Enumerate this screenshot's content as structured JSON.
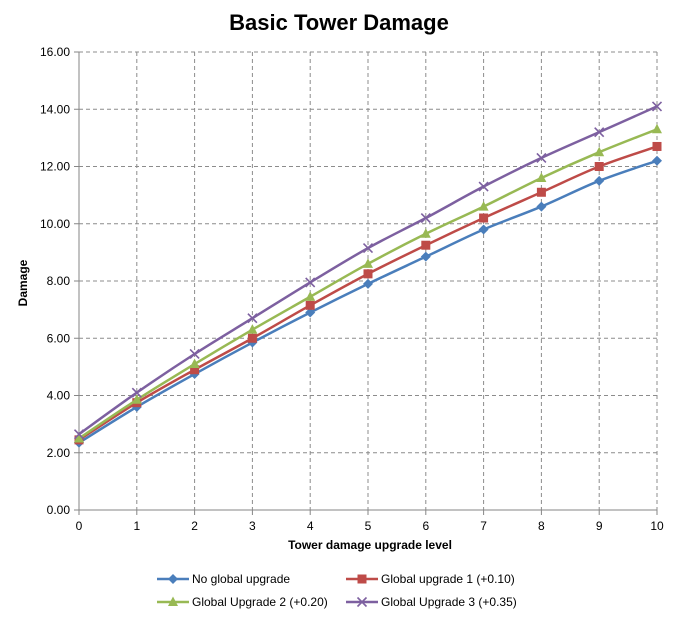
{
  "chart_data": {
    "type": "line",
    "title": "Basic Tower Damage",
    "xlabel": "Tower damage upgrade level",
    "ylabel": "Damage",
    "x": [
      0,
      1,
      2,
      3,
      4,
      5,
      6,
      7,
      8,
      9,
      10
    ],
    "xlim": [
      0,
      10
    ],
    "ylim": [
      0,
      16
    ],
    "y_ticks": [
      "0.00",
      "2.00",
      "4.00",
      "6.00",
      "8.00",
      "10.00",
      "12.00",
      "14.00",
      "16.00"
    ],
    "x_ticks": [
      "0",
      "1",
      "2",
      "3",
      "4",
      "5",
      "6",
      "7",
      "8",
      "9",
      "10"
    ],
    "grid": true,
    "legend_position": "bottom",
    "series": [
      {
        "name": "No global upgrade",
        "color": "#4a7ebb",
        "marker": "diamond",
        "values": [
          2.35,
          3.6,
          4.75,
          5.85,
          6.9,
          7.9,
          8.85,
          9.8,
          10.6,
          11.5,
          12.2
        ]
      },
      {
        "name": "Global upgrade 1 (+0.10)",
        "color": "#be4b48",
        "marker": "square",
        "values": [
          2.45,
          3.75,
          4.9,
          6.0,
          7.15,
          8.25,
          9.25,
          10.2,
          11.1,
          12.0,
          12.7
        ]
      },
      {
        "name": "Global Upgrade 2 (+0.20)",
        "color": "#98b954",
        "marker": "triangle",
        "values": [
          2.5,
          3.85,
          5.1,
          6.3,
          7.45,
          8.6,
          9.65,
          10.6,
          11.6,
          12.5,
          13.3
        ]
      },
      {
        "name": "Global Upgrade 3 (+0.35)",
        "color": "#7d60a0",
        "marker": "x",
        "values": [
          2.65,
          4.1,
          5.45,
          6.7,
          7.95,
          9.15,
          10.2,
          11.3,
          12.3,
          13.2,
          14.1
        ]
      }
    ]
  }
}
